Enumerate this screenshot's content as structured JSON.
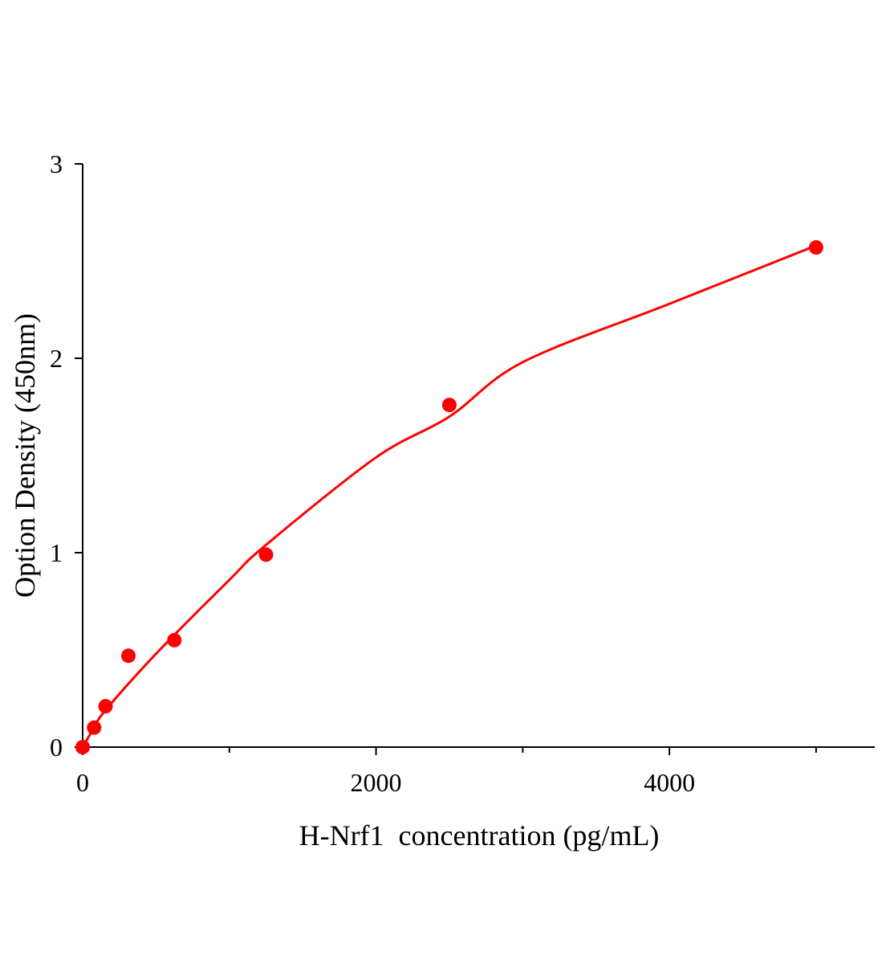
{
  "chart_data": {
    "type": "scatter",
    "title": "",
    "xlabel": "H-Nrf1  concentration (pg/mL)",
    "ylabel": "Option Density (450nm)",
    "xlim": [
      0,
      5400
    ],
    "ylim": [
      0,
      3
    ],
    "x_ticks": [
      0,
      2000,
      4000
    ],
    "x_tick_labels": [
      "0",
      "2000",
      "4000"
    ],
    "x_minor_ticks": [
      1000,
      3000,
      5000
    ],
    "y_ticks": [
      0,
      1,
      2,
      3
    ],
    "y_tick_labels": [
      "0",
      "1",
      "2",
      "3"
    ],
    "grid": false,
    "color": "#ff0000",
    "points": {
      "x": [
        0,
        78,
        156,
        312,
        625,
        1250,
        2500,
        5000
      ],
      "y": [
        0,
        0.1,
        0.21,
        0.47,
        0.55,
        0.99,
        1.76,
        2.57
      ]
    },
    "fit_curve": {
      "x": [
        0,
        78,
        156,
        500,
        1000,
        1250,
        2000,
        2500,
        3000,
        4000,
        5000
      ],
      "y": [
        0,
        0.1,
        0.19,
        0.48,
        0.86,
        1.04,
        1.49,
        1.7,
        1.98,
        2.28,
        2.58
      ]
    }
  }
}
